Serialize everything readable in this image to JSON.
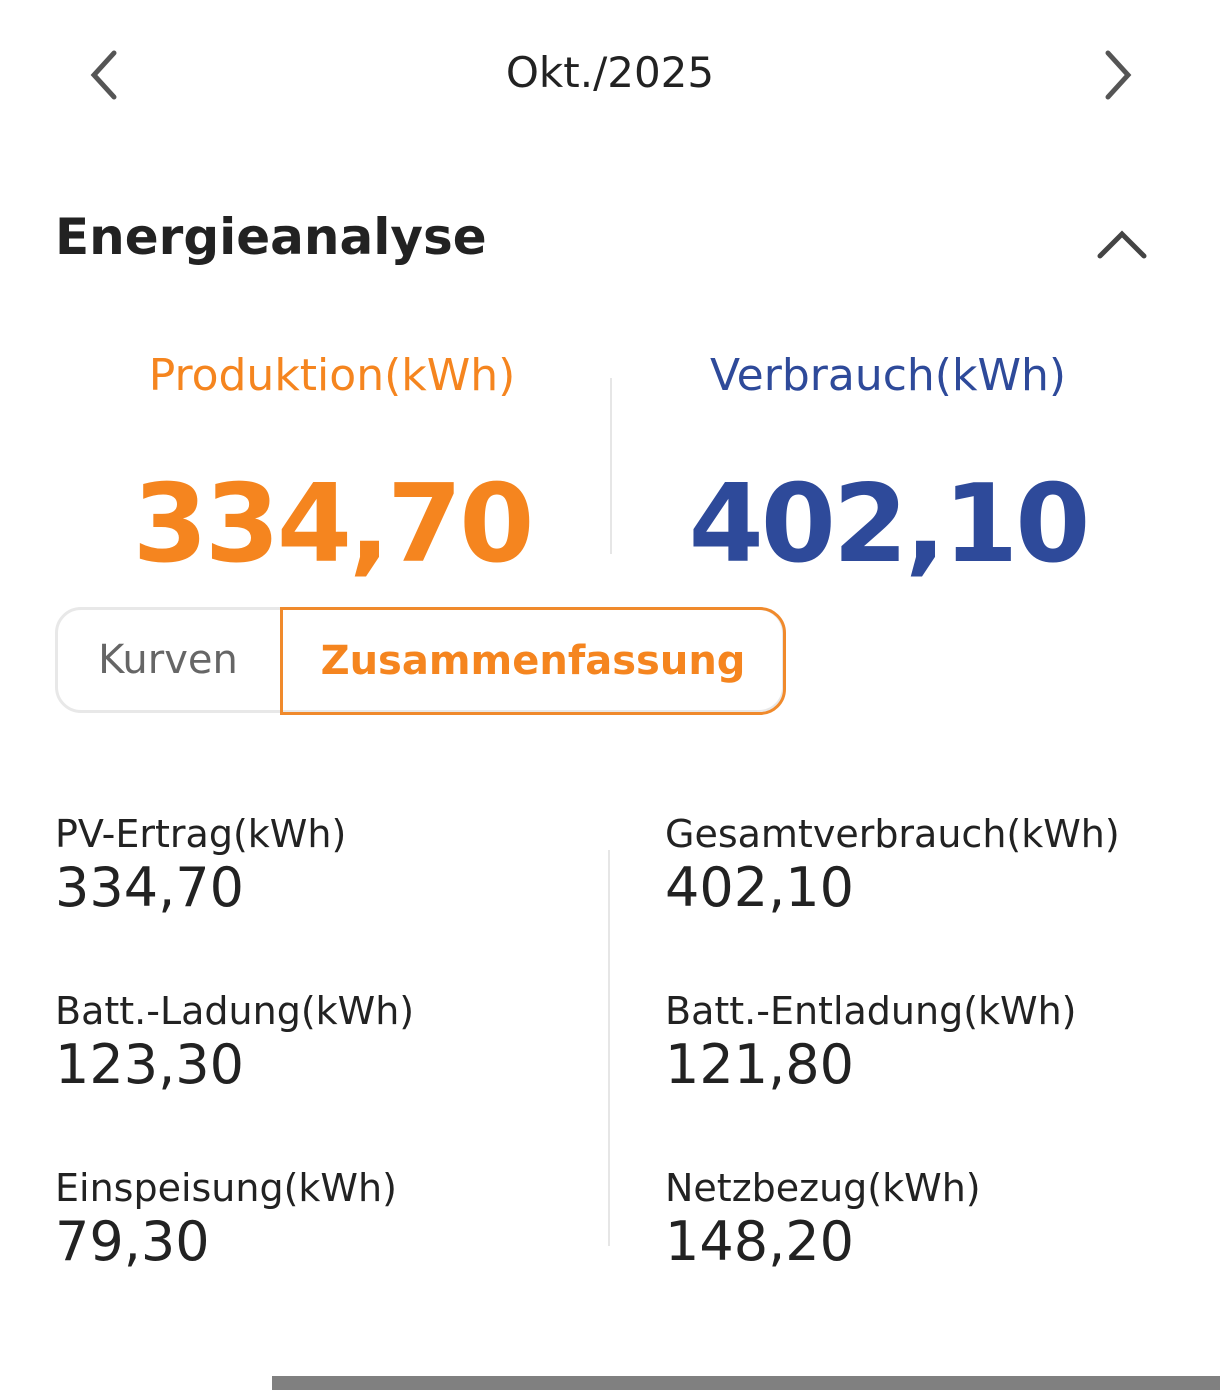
{
  "header": {
    "month": "Okt./2025",
    "prev_icon": "chevron-left-icon",
    "next_icon": "chevron-right-icon"
  },
  "section": {
    "title": "Energieanalyse",
    "collapse_icon": "chevron-up-icon"
  },
  "totals": {
    "production_label": "Produktion(kWh)",
    "production_value": "334,70",
    "consumption_label": "Verbrauch(kWh)",
    "consumption_value": "402,10"
  },
  "tabs": [
    {
      "label": "Kurven",
      "active": false
    },
    {
      "label": "Zusammenfassung",
      "active": true
    }
  ],
  "summary": {
    "left": [
      {
        "label": "PV-Ertrag(kWh)",
        "value": "334,70"
      },
      {
        "label": "Batt.-Ladung(kWh)",
        "value": "123,30"
      },
      {
        "label": "Einspeisung(kWh)",
        "value": "79,30"
      }
    ],
    "right": [
      {
        "label": "Gesamtverbrauch(kWh)",
        "value": "402,10"
      },
      {
        "label": "Batt.-Entladung(kWh)",
        "value": "121,80"
      },
      {
        "label": "Netzbezug(kWh)",
        "value": "148,20"
      }
    ]
  },
  "colors": {
    "production": "#f5851f",
    "consumption": "#2e4a9a",
    "tab_border": "#f08a2c"
  }
}
